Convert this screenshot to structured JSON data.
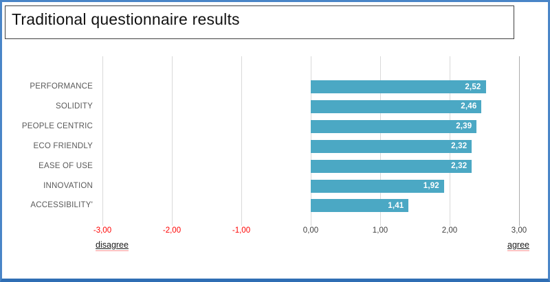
{
  "title": {
    "text": "Traditional questionnaire results"
  },
  "frame": {
    "border_color": "#4a85c7",
    "bottom_border_color": "#2f6eb4",
    "title_box_border_color": "#3f3f3f"
  },
  "chart_data": {
    "type": "bar",
    "orientation": "horizontal",
    "categories": [
      "PERFORMANCE",
      "SOLIDITY",
      "PEOPLE CENTRIC",
      "ECO FRIENDLY",
      "EASE OF USE",
      "INNOVATION",
      "ACCESSIBILITY'"
    ],
    "values": [
      2.52,
      2.46,
      2.39,
      2.32,
      2.32,
      1.92,
      1.41
    ],
    "value_labels": [
      "2,52",
      "2,46",
      "2,39",
      "2,32",
      "2,32",
      "1,92",
      "1,41"
    ],
    "bar_color": "#4ba8c4",
    "value_label_color": "#ffffff",
    "xlim": [
      -3,
      3
    ],
    "x_ticks": [
      {
        "value": -3,
        "label": "-3,00",
        "color": "#ff0000"
      },
      {
        "value": -2,
        "label": "-2,00",
        "color": "#ff0000"
      },
      {
        "value": -1,
        "label": "-1,00",
        "color": "#ff0000"
      },
      {
        "value": 0,
        "label": "0,00",
        "color": "#404040"
      },
      {
        "value": 1,
        "label": "1,00",
        "color": "#404040"
      },
      {
        "value": 2,
        "label": "2,00",
        "color": "#404040"
      },
      {
        "value": 3,
        "label": "3,00",
        "color": "#404040"
      }
    ],
    "grid": true,
    "gridline_color": "#d9d9d9",
    "right_gridline_color": "#ababab",
    "axis_left_label": "disagree",
    "axis_right_label": "agree",
    "category_label_color": "#595959"
  }
}
